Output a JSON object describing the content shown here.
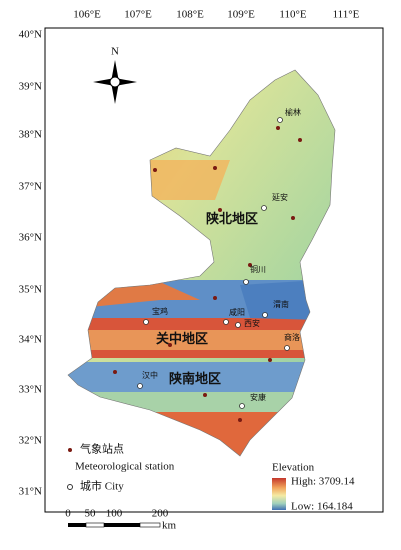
{
  "map": {
    "north": "N",
    "longitude_labels": [
      "106°E",
      "107°E",
      "108°E",
      "109°E",
      "110°E",
      "111°E"
    ],
    "latitude_labels": [
      "40°N",
      "39°N",
      "38°N",
      "37°N",
      "36°N",
      "35°N",
      "34°N",
      "33°N",
      "32°N",
      "31°N"
    ],
    "regions": [
      "陕北地区",
      "关中地区",
      "陕南地区"
    ],
    "cities": [
      "榆林",
      "延安",
      "铜川",
      "宝鸡",
      "咸阳",
      "西安",
      "渭南",
      "商洛",
      "汉中",
      "安康"
    ],
    "legend": {
      "station_cn": "气象站点",
      "station_en": "Meteorological station",
      "city": "城市 City",
      "elevation": "Elevation",
      "high": "High: 3709.14",
      "low": "Low: 164.184"
    },
    "scale": {
      "labels": [
        "0",
        "50",
        "100",
        "200"
      ],
      "unit": "km"
    }
  }
}
